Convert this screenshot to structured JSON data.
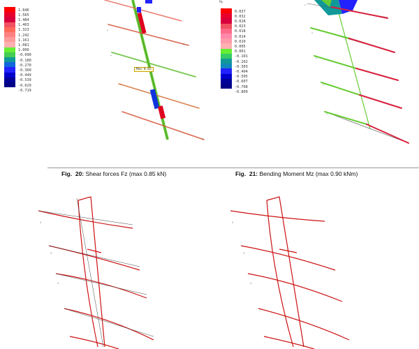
{
  "figures": {
    "fig20": {
      "label": "Fig.",
      "number": "20:",
      "text": "Shear forces Fz (max 0.85 kN)",
      "legend_unit": "",
      "legend": [
        {
          "value": "1.646",
          "color": "#ff0000"
        },
        {
          "value": "1.565",
          "color": "#e8002a"
        },
        {
          "value": "1.484",
          "color": "#d8003c"
        },
        {
          "value": "1.403",
          "color": "#f05060"
        },
        {
          "value": "1.323",
          "color": "#ff6a5a"
        },
        {
          "value": "1.242",
          "color": "#ff8080"
        },
        {
          "value": "1.161",
          "color": "#ff9a9a"
        },
        {
          "value": "1.081",
          "color": "#ffb0b0"
        },
        {
          "value": "1.000",
          "color": "#66ee33"
        },
        {
          "value": "-0.090",
          "color": "#44cc55"
        },
        {
          "value": "-0.180",
          "color": "#119999"
        },
        {
          "value": "-0.270",
          "color": "#1166dd"
        },
        {
          "value": "-0.360",
          "color": "#2222ff"
        },
        {
          "value": "-0.449",
          "color": "#0000cc"
        },
        {
          "value": "-0.539",
          "color": "#000099"
        },
        {
          "value": "-0.629",
          "color": "#000088"
        },
        {
          "value": "-0.719",
          "color": "#ffffff"
        }
      ],
      "max_label": "Max 0.85"
    },
    "fig21": {
      "label": "Fig.",
      "number": "21:",
      "text": "Bending Moment Mz (max 0.90 kNm)",
      "legend_unit": "My",
      "legend": [
        {
          "value": "0.037",
          "color": "#ff0000"
        },
        {
          "value": "0.032",
          "color": "#e8002a"
        },
        {
          "value": "0.028",
          "color": "#d8003c"
        },
        {
          "value": "0.023",
          "color": "#f05060"
        },
        {
          "value": "0.018",
          "color": "#ff6a8a"
        },
        {
          "value": "0.014",
          "color": "#ff88aa"
        },
        {
          "value": "0.010",
          "color": "#ff9aaa"
        },
        {
          "value": "0.005",
          "color": "#ffb0b0"
        },
        {
          "value": "0.001",
          "color": "#66ee33"
        },
        {
          "value": "-0.101",
          "color": "#33cc66"
        },
        {
          "value": "-0.202",
          "color": "#119999"
        },
        {
          "value": "-0.303",
          "color": "#1188bb"
        },
        {
          "value": "-0.404",
          "color": "#2222ff"
        },
        {
          "value": "-0.505",
          "color": "#0000cc"
        },
        {
          "value": "-0.607",
          "color": "#000099"
        },
        {
          "value": "-0.708",
          "color": "#000088"
        },
        {
          "value": "-0.809",
          "color": "#ffffff"
        }
      ]
    }
  }
}
